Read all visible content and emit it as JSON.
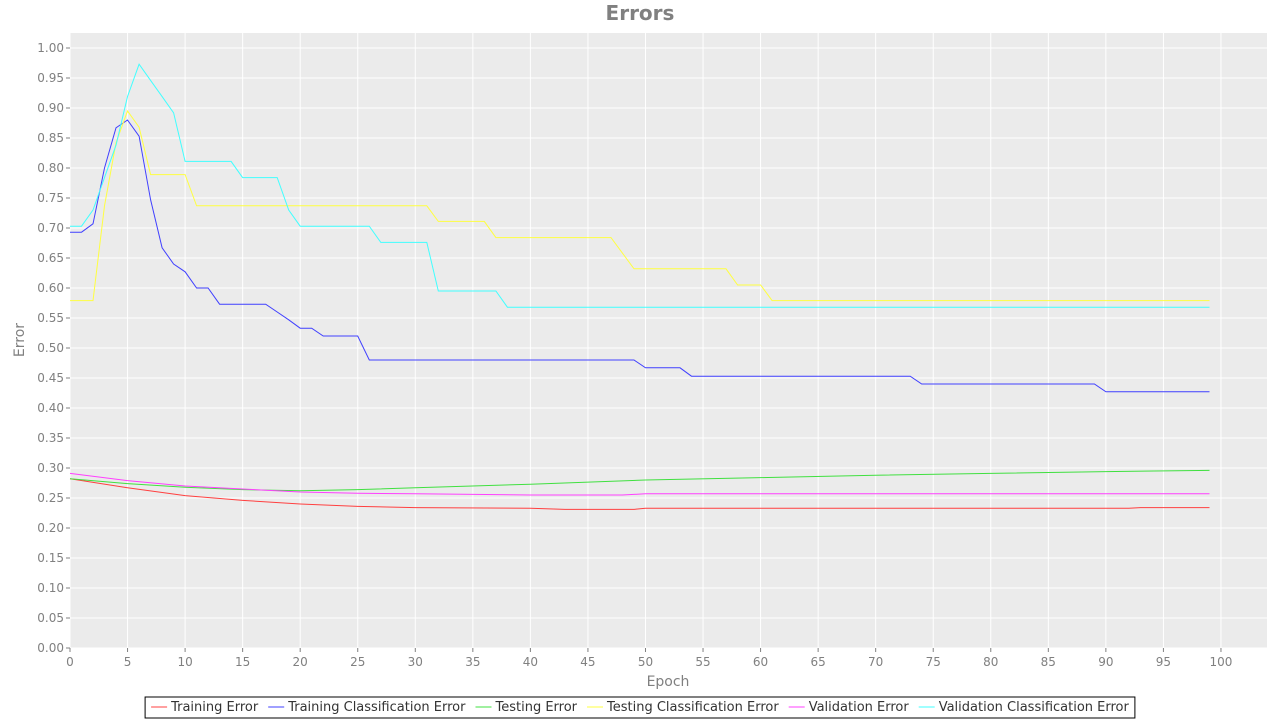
{
  "chart_data": {
    "type": "line",
    "title": "Errors",
    "xlabel": "Epoch",
    "ylabel": "Error",
    "xlim": [
      0,
      104
    ],
    "ylim": [
      0,
      1.025
    ],
    "xticks": [
      0,
      5,
      10,
      15,
      20,
      25,
      30,
      35,
      40,
      45,
      50,
      55,
      60,
      65,
      70,
      75,
      80,
      85,
      90,
      95,
      100
    ],
    "yticks": [
      0.0,
      0.05,
      0.1,
      0.15,
      0.2,
      0.25,
      0.3,
      0.35,
      0.4,
      0.45,
      0.5,
      0.55,
      0.6,
      0.65,
      0.7,
      0.75,
      0.8,
      0.85,
      0.9,
      0.95,
      1.0
    ],
    "grid": true,
    "plot_background": "#ebebeb",
    "legend_position": "bottom",
    "series": [
      {
        "name": "Training Error",
        "color": "#ff4040",
        "points": [
          [
            0,
            0.282
          ],
          [
            5,
            0.267
          ],
          [
            10,
            0.254
          ],
          [
            15,
            0.246
          ],
          [
            20,
            0.24
          ],
          [
            25,
            0.236
          ],
          [
            30,
            0.234
          ],
          [
            40,
            0.233
          ],
          [
            43,
            0.231
          ],
          [
            49,
            0.231
          ],
          [
            50,
            0.233
          ],
          [
            60,
            0.233
          ],
          [
            80,
            0.233
          ],
          [
            92,
            0.233
          ],
          [
            93,
            0.234
          ],
          [
            99,
            0.234
          ]
        ]
      },
      {
        "name": "Training Classification Error",
        "color": "#4040ff",
        "points": [
          [
            0,
            0.693
          ],
          [
            1,
            0.693
          ],
          [
            2,
            0.707
          ],
          [
            3,
            0.8
          ],
          [
            4,
            0.867
          ],
          [
            5,
            0.88
          ],
          [
            6,
            0.853
          ],
          [
            7,
            0.747
          ],
          [
            8,
            0.667
          ],
          [
            9,
            0.64
          ],
          [
            10,
            0.627
          ],
          [
            11,
            0.6
          ],
          [
            12,
            0.6
          ],
          [
            13,
            0.573
          ],
          [
            17,
            0.573
          ],
          [
            18,
            0.56
          ],
          [
            19,
            0.547
          ],
          [
            20,
            0.533
          ],
          [
            21,
            0.533
          ],
          [
            22,
            0.52
          ],
          [
            25,
            0.52
          ],
          [
            26,
            0.48
          ],
          [
            49,
            0.48
          ],
          [
            50,
            0.467
          ],
          [
            53,
            0.467
          ],
          [
            54,
            0.453
          ],
          [
            73,
            0.453
          ],
          [
            74,
            0.44
          ],
          [
            89,
            0.44
          ],
          [
            90,
            0.427
          ],
          [
            99,
            0.427
          ]
        ]
      },
      {
        "name": "Testing Error",
        "color": "#40e040",
        "points": [
          [
            0,
            0.282
          ],
          [
            5,
            0.274
          ],
          [
            10,
            0.268
          ],
          [
            15,
            0.264
          ],
          [
            20,
            0.262
          ],
          [
            25,
            0.264
          ],
          [
            30,
            0.267
          ],
          [
            40,
            0.273
          ],
          [
            50,
            0.28
          ],
          [
            60,
            0.284
          ],
          [
            70,
            0.288
          ],
          [
            80,
            0.291
          ],
          [
            90,
            0.294
          ],
          [
            99,
            0.296
          ]
        ]
      },
      {
        "name": "Testing Classification Error",
        "color": "#ffff40",
        "points": [
          [
            0,
            0.579
          ],
          [
            2,
            0.579
          ],
          [
            3,
            0.737
          ],
          [
            4,
            0.842
          ],
          [
            5,
            0.895
          ],
          [
            6,
            0.868
          ],
          [
            7,
            0.789
          ],
          [
            10,
            0.789
          ],
          [
            11,
            0.737
          ],
          [
            31,
            0.737
          ],
          [
            32,
            0.711
          ],
          [
            36,
            0.711
          ],
          [
            37,
            0.684
          ],
          [
            47,
            0.684
          ],
          [
            49,
            0.632
          ],
          [
            57,
            0.632
          ],
          [
            58,
            0.605
          ],
          [
            60,
            0.605
          ],
          [
            61,
            0.579
          ],
          [
            99,
            0.579
          ]
        ]
      },
      {
        "name": "Validation Error",
        "color": "#ff40ff",
        "points": [
          [
            0,
            0.291
          ],
          [
            5,
            0.279
          ],
          [
            10,
            0.27
          ],
          [
            15,
            0.265
          ],
          [
            20,
            0.26
          ],
          [
            25,
            0.258
          ],
          [
            30,
            0.257
          ],
          [
            40,
            0.255
          ],
          [
            48,
            0.255
          ],
          [
            50,
            0.257
          ],
          [
            60,
            0.257
          ],
          [
            99,
            0.257
          ]
        ]
      },
      {
        "name": "Validation Classification Error",
        "color": "#40ffff",
        "points": [
          [
            0,
            0.703
          ],
          [
            1,
            0.703
          ],
          [
            2,
            0.73
          ],
          [
            3,
            0.784
          ],
          [
            4,
            0.838
          ],
          [
            5,
            0.919
          ],
          [
            6,
            0.973
          ],
          [
            7,
            0.946
          ],
          [
            8,
            0.919
          ],
          [
            9,
            0.892
          ],
          [
            10,
            0.811
          ],
          [
            14,
            0.811
          ],
          [
            15,
            0.784
          ],
          [
            18,
            0.784
          ],
          [
            19,
            0.73
          ],
          [
            20,
            0.703
          ],
          [
            26,
            0.703
          ],
          [
            27,
            0.676
          ],
          [
            31,
            0.676
          ],
          [
            32,
            0.595
          ],
          [
            37,
            0.595
          ],
          [
            38,
            0.568
          ],
          [
            99,
            0.568
          ]
        ]
      }
    ]
  }
}
